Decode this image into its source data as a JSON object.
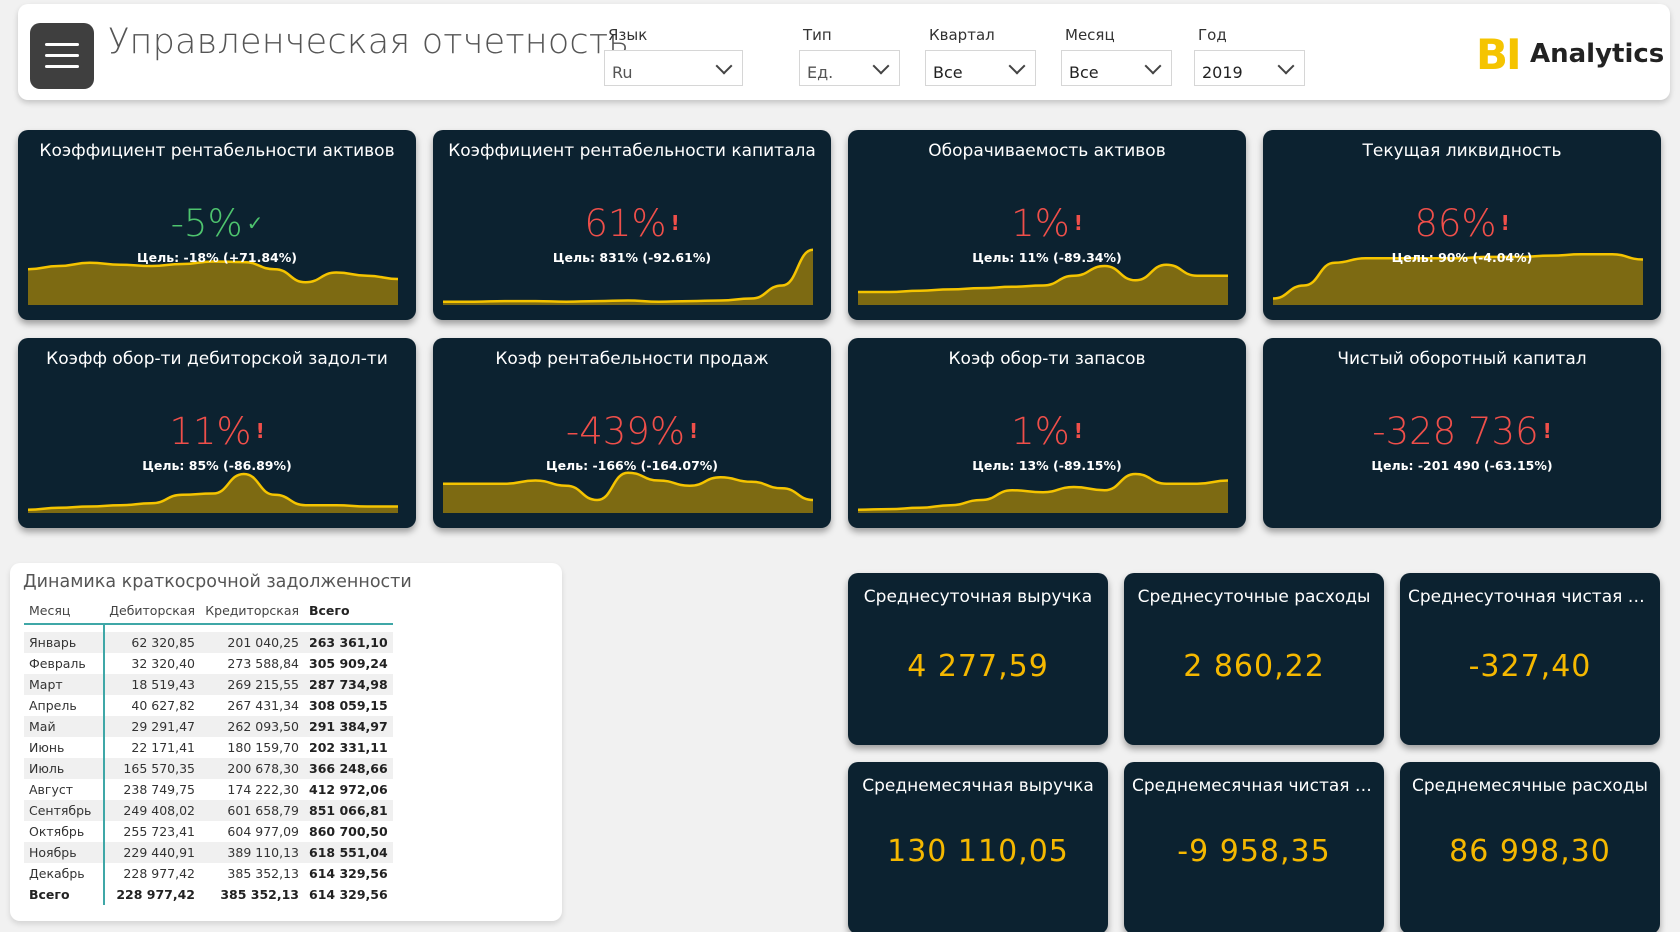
{
  "header": {
    "title": "Управленческая отчетность",
    "filters": [
      {
        "label": "Язык",
        "value": "Ru"
      },
      {
        "label": "Тип",
        "value": "Ед."
      },
      {
        "label": "Квартал",
        "value": "Все"
      },
      {
        "label": "Месяц",
        "value": "Все"
      },
      {
        "label": "Год",
        "value": "2019"
      }
    ],
    "logo": {
      "bi": "BI",
      "text": "Analytics"
    }
  },
  "kpis": [
    {
      "title": "Коэффициент рентабельности активов",
      "value": "-5%",
      "status": "good",
      "status_icon": "check-icon",
      "mark": "✓",
      "target": "Цель: -18% (+71.84%)",
      "trend": [
        0.55,
        0.6,
        0.65,
        0.62,
        0.6,
        0.63,
        0.67,
        0.66,
        0.55,
        0.35,
        0.5,
        0.45,
        0.4
      ]
    },
    {
      "title": "Коэффициент рентабельности капитала",
      "value": "61%",
      "status": "bad",
      "status_icon": "alert-icon",
      "mark": "!",
      "target": "Цель: 831% (-92.61%)",
      "trend": [
        0.05,
        0.05,
        0.06,
        0.06,
        0.05,
        0.06,
        0.07,
        0.05,
        0.06,
        0.07,
        0.1,
        0.3,
        0.85
      ]
    },
    {
      "title": "Оборачиваемость активов",
      "value": "1%",
      "status": "bad",
      "status_icon": "alert-icon",
      "mark": "!",
      "target": "Цель: 11% (-89.34%)",
      "trend": [
        0.2,
        0.2,
        0.22,
        0.24,
        0.26,
        0.28,
        0.3,
        0.45,
        0.6,
        0.38,
        0.62,
        0.45,
        0.45
      ]
    },
    {
      "title": "Текущая ликвидность",
      "value": "86%",
      "status": "bad",
      "status_icon": "alert-icon",
      "mark": "!",
      "target": "Цель: 90% (-4.04%)",
      "trend": [
        0.1,
        0.3,
        0.65,
        0.72,
        0.72,
        0.72,
        0.72,
        0.74,
        0.74,
        0.76,
        0.78,
        0.78,
        0.7
      ]
    },
    {
      "title": "Коэфф обор-ти дебиторской задол-ти",
      "value": "11%",
      "status": "bad",
      "status_icon": "alert-icon",
      "mark": "!",
      "target": "Цель: 85% (-86.89%)",
      "trend": [
        0.05,
        0.08,
        0.1,
        0.12,
        0.15,
        0.28,
        0.3,
        0.6,
        0.28,
        0.12,
        0.12,
        0.1,
        0.1
      ]
    },
    {
      "title": "Коэф рентабельности продаж",
      "value": "-439%",
      "status": "bad",
      "status_icon": "alert-icon",
      "mark": "!",
      "target": "Цель: -166% (-164.07%)",
      "trend": [
        0.45,
        0.45,
        0.45,
        0.5,
        0.42,
        0.2,
        0.62,
        0.5,
        0.42,
        0.55,
        0.48,
        0.38,
        0.2
      ]
    },
    {
      "title": "Коэф обор-ти запасов",
      "value": "1%",
      "status": "bad",
      "status_icon": "alert-icon",
      "mark": "!",
      "target": "Цель: 13% (-89.15%)",
      "trend": [
        0.05,
        0.06,
        0.08,
        0.12,
        0.2,
        0.35,
        0.32,
        0.4,
        0.35,
        0.6,
        0.45,
        0.45,
        0.5
      ]
    },
    {
      "title": "Чистый оборотный капитал",
      "value": "-328 736",
      "status": "bad",
      "status_icon": "alert-icon",
      "mark": "!",
      "target": "Цель: -201 490 (-63.15%)",
      "trend": []
    }
  ],
  "debt_table": {
    "title": "Динамика краткосрочной задолженности",
    "columns": [
      "Месяц",
      "Дебиторская",
      "Кредиторская",
      "Всего"
    ],
    "rows": [
      [
        "Январь",
        "62 320,85",
        "201 040,25",
        "263 361,10"
      ],
      [
        "Февраль",
        "32 320,40",
        "273 588,84",
        "305 909,24"
      ],
      [
        "Март",
        "18 519,43",
        "269 215,55",
        "287 734,98"
      ],
      [
        "Апрель",
        "40 627,82",
        "267 431,34",
        "308 059,15"
      ],
      [
        "Май",
        "29 291,47",
        "262 093,50",
        "291 384,97"
      ],
      [
        "Июнь",
        "22 171,41",
        "180 159,70",
        "202 331,11"
      ],
      [
        "Июль",
        "165 570,35",
        "200 678,30",
        "366 248,66"
      ],
      [
        "Август",
        "238 749,75",
        "174 222,30",
        "412 972,06"
      ],
      [
        "Сентябрь",
        "249 408,02",
        "601 658,79",
        "851 066,81"
      ],
      [
        "Октябрь",
        "255 723,41",
        "604 977,09",
        "860 700,50"
      ],
      [
        "Ноябрь",
        "229 440,91",
        "389 110,13",
        "618 551,04"
      ],
      [
        "Декабрь",
        "228 977,42",
        "385 352,13",
        "614 329,56"
      ]
    ],
    "total": [
      "Всего",
      "228 977,42",
      "385 352,13",
      "614 329,56"
    ]
  },
  "metrics": [
    {
      "title": "Среднесуточная выручка",
      "value": "4 277,59"
    },
    {
      "title": "Среднесуточные расходы",
      "value": "2 860,22"
    },
    {
      "title": "Среднесуточная чистая прибыль",
      "value": "-327,40"
    },
    {
      "title": "Среднемесячная выручка",
      "value": "130 110,05"
    },
    {
      "title": "Среднемесячная чистая прибыль",
      "value": "-9 958,35"
    },
    {
      "title": "Среднемесячные расходы",
      "value": "86 998,30"
    }
  ],
  "colors": {
    "card_bg": "#0c2230",
    "accent": "#f5b800",
    "good": "#4ec46e",
    "bad": "#ef4f4a",
    "spark_fill": "#7d6a12",
    "spark_line": "#f5c400"
  }
}
